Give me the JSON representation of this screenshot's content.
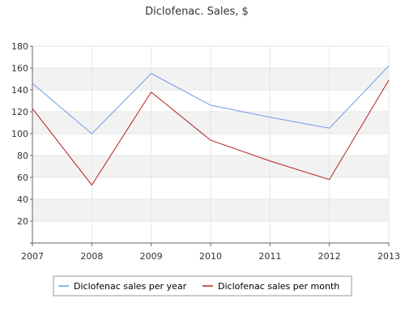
{
  "chart_data": {
    "type": "line",
    "title": "Diclofenac. Sales, $",
    "xlabel": "",
    "ylabel": "",
    "categories": [
      "2007",
      "2008",
      "2009",
      "2010",
      "2011",
      "2012",
      "2013"
    ],
    "ylim": [
      0,
      180
    ],
    "yticks": [
      "20",
      "40",
      "60",
      "80",
      "100",
      "120",
      "140",
      "160",
      "180"
    ],
    "grid": "horizontal bands",
    "legend": "bottom",
    "series": [
      {
        "name": "Diclofenac sales per year",
        "color": "#6f9be8",
        "values": [
          146,
          100,
          155,
          126,
          115,
          105,
          162
        ]
      },
      {
        "name": "Diclofenac sales per month",
        "color": "#b22222",
        "values": [
          123,
          53,
          138,
          94,
          75,
          58,
          149
        ]
      }
    ]
  }
}
